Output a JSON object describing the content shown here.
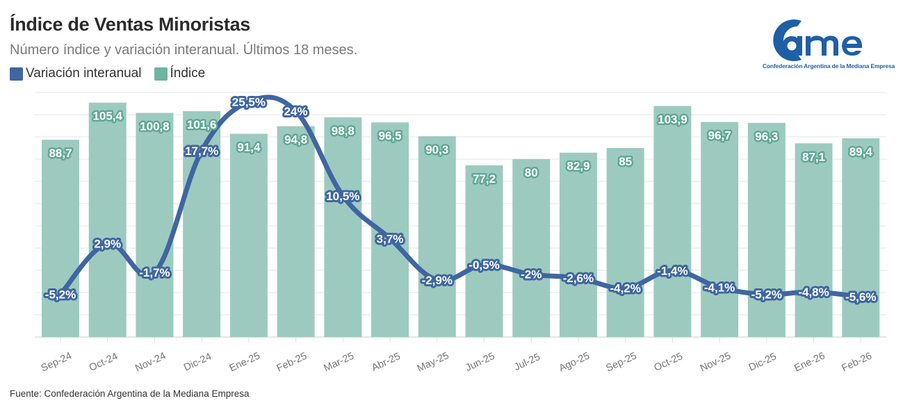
{
  "header": {
    "title": "Índice de Ventas Minoristas",
    "subtitle": "Número índice y variación interanual. Últimos 18 meses."
  },
  "logo": {
    "wordmark": "came",
    "tagline": "Confederación Argentina de la Mediana Empresa"
  },
  "footer": {
    "source": "Fuente: Confederación Argentina de la Mediana Empresa"
  },
  "colors": {
    "line": "#3f66a0",
    "bar": "#9dcabf",
    "bar_label_outline": "#5fa893",
    "grid": "#e4e4e4",
    "logo": "#1f5fa6"
  },
  "chart_data": {
    "type": "bar+line",
    "title": "Índice de Ventas Minoristas",
    "subtitle": "Número índice y variación interanual. Últimos 18 meses.",
    "categories": [
      "Sep-24",
      "Oct-24",
      "Nov-24",
      "Dic-24",
      "Ene-25",
      "Feb-25",
      "Mar-25",
      "Abr-25",
      "May-25",
      "Jun-25",
      "Jul-25",
      "Ago-25",
      "Sep-25",
      "Oct-25",
      "Nov-25",
      "Dic-25",
      "Ene-26",
      "Feb-26"
    ],
    "series": [
      {
        "name": "Variación interanual",
        "type": "line",
        "axis": "right",
        "values": [
          -5.2,
          2.9,
          -1.7,
          17.7,
          25.5,
          24,
          10.5,
          3.7,
          -2.9,
          -0.5,
          -2,
          -2.6,
          -4.2,
          -1.4,
          -4.1,
          -5.2,
          -4.8,
          -5.6
        ],
        "labels": [
          "-5,2%",
          "2,9%",
          "-1,7%",
          "17,7%",
          "25,5%",
          "24%",
          "10,5%",
          "3,7%",
          "-2,9%",
          "-0,5%",
          "-2%",
          "-2,6%",
          "-4,2%",
          "-1,4%",
          "-4,1%",
          "-5,2%",
          "-4,8%",
          "-5,6%"
        ]
      },
      {
        "name": "Índice",
        "type": "bar",
        "axis": "left",
        "values": [
          88.7,
          105.4,
          100.8,
          101.6,
          91.4,
          94.8,
          98.8,
          96.5,
          90.3,
          77.2,
          80,
          82.9,
          85,
          103.9,
          96.7,
          96.3,
          87.1,
          89.4
        ],
        "labels": [
          "88,7",
          "105,4",
          "100,8",
          "101,6",
          "91,4",
          "94,8",
          "98,8",
          "96,5",
          "90,3",
          "77,2",
          "80",
          "82,9",
          "85",
          "103,9",
          "96,7",
          "96,3",
          "87,1",
          "89,4"
        ]
      }
    ],
    "bar_axis_range": [
      0,
      110
    ],
    "line_axis_range": [
      -12,
      27
    ],
    "grid": true,
    "legend": "top-left",
    "xlabel": "",
    "ylabel": ""
  }
}
